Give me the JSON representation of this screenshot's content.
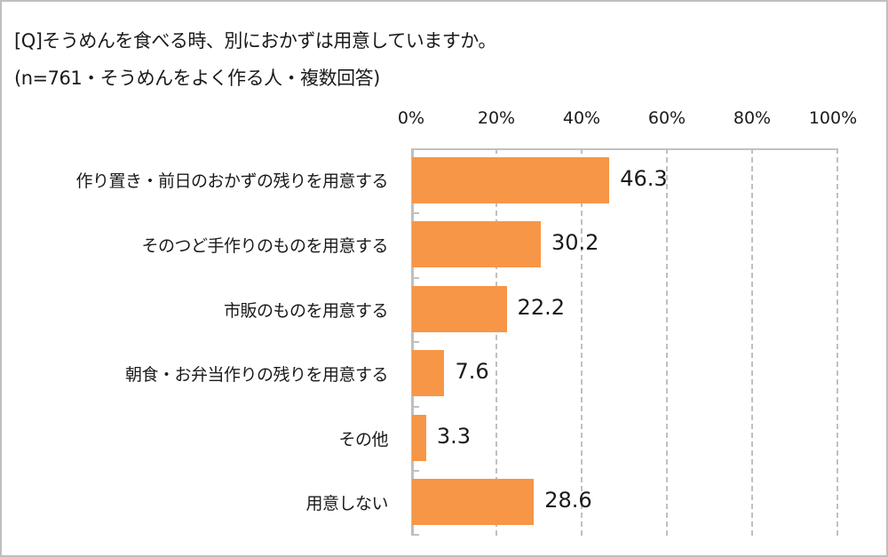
{
  "title": {
    "question": "[Q]そうめんを食べる時、別におかずは用意していますか。",
    "sample_note": "(n=761・そうめんをよく作る人・複数回答)"
  },
  "axis": {
    "ticks": [
      "0%",
      "20%",
      "40%",
      "60%",
      "80%",
      "100%"
    ]
  },
  "bar_color": "#f79646",
  "chart_data": {
    "type": "bar",
    "orientation": "horizontal",
    "title": "[Q]そうめんを食べる時、別におかずは用意していますか。",
    "subtitle": "(n=761・そうめんをよく作る人・複数回答)",
    "categories": [
      "作り置き・前日のおかずの残りを用意する",
      "そのつど手作りのものを用意する",
      "市販のものを用意する",
      "朝食・お弁当作りの残りを用意する",
      "その他",
      "用意しない"
    ],
    "values": [
      46.3,
      30.2,
      22.2,
      7.6,
      3.3,
      28.6
    ],
    "value_labels": [
      "46.3",
      "30.2",
      "22.2",
      "7.6",
      "3.3",
      "28.6"
    ],
    "xlabel": "",
    "ylabel": "",
    "xlim": [
      0,
      100
    ],
    "x_ticks": [
      "0%",
      "20%",
      "40%",
      "60%",
      "80%",
      "100%"
    ],
    "x_axis_position": "top",
    "grid": "vertical dashed",
    "legend": "none",
    "color": "#f79646"
  }
}
